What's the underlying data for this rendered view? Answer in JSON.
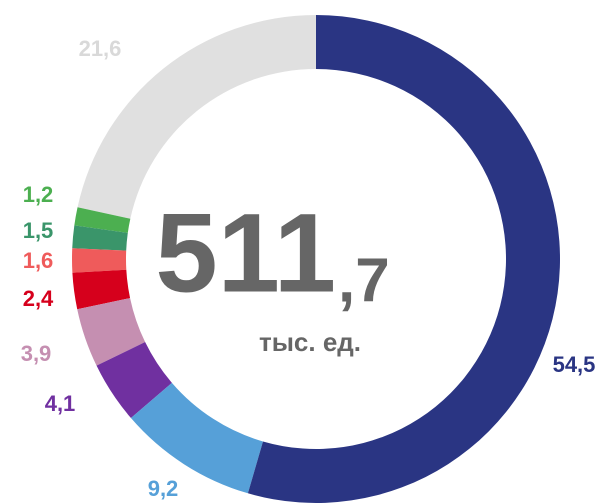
{
  "chart_data": {
    "type": "donut",
    "categories": [
      null,
      null,
      null,
      null,
      null,
      null,
      null,
      null,
      null
    ],
    "values": [
      54.5,
      9.2,
      4.1,
      3.9,
      2.4,
      1.6,
      1.5,
      1.2,
      21.6
    ],
    "value_labels": [
      "54,5",
      "9,2",
      "4,1",
      "3,9",
      "2,4",
      "1,6",
      "1,5",
      "1,2",
      "21,6"
    ],
    "colors": [
      "#2a3583",
      "#56a0d8",
      "#7030a0",
      "#c58fb1",
      "#d6001c",
      "#ef5b5b",
      "#3a956a",
      "#4caf50",
      "#e0e0e0"
    ],
    "center_main": "511",
    "center_sub": ",7",
    "center_unit": "тыс. ед."
  }
}
